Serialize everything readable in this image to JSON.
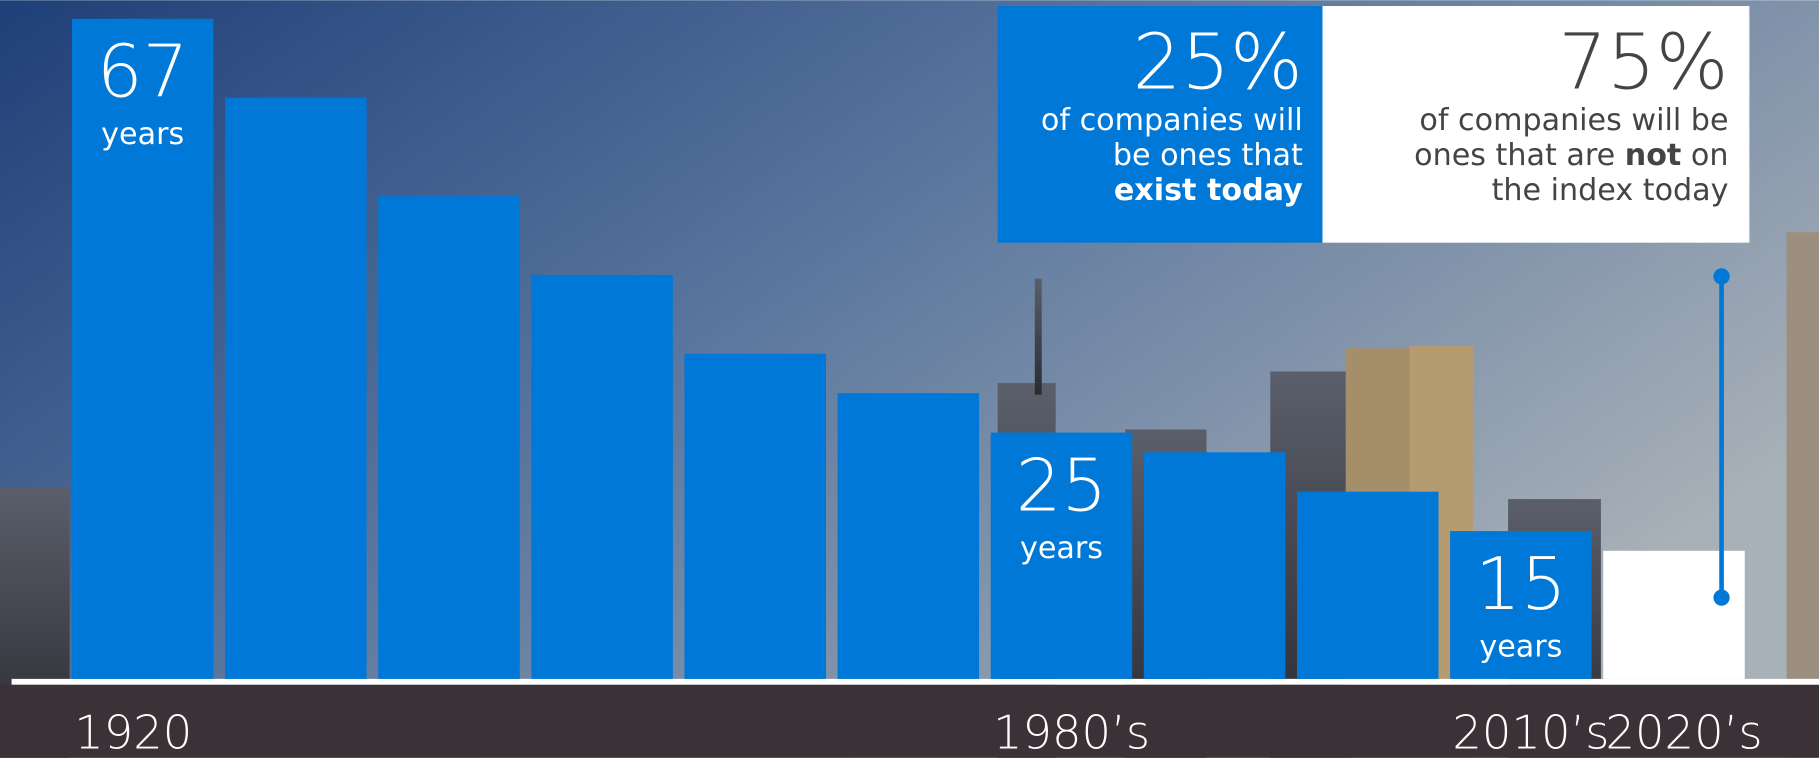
{
  "chart_data": {
    "type": "bar",
    "categories": [
      "1920",
      null,
      null,
      null,
      null,
      null,
      "1980’s",
      null,
      null,
      "2010’s",
      "2020’s"
    ],
    "values": [
      67,
      59,
      49,
      41,
      33,
      29,
      25,
      23,
      19,
      15,
      13
    ],
    "value_labels": [
      "67",
      null,
      null,
      null,
      null,
      null,
      "25",
      null,
      null,
      "15",
      null
    ],
    "value_unit": "years",
    "colors": [
      "#0078d7",
      "#0078d7",
      "#0078d7",
      "#0078d7",
      "#0078d7",
      "#0078d7",
      "#0078d7",
      "#0078d7",
      "#0078d7",
      "#0078d7",
      "#ffffff"
    ],
    "ylim": [
      0,
      67
    ]
  },
  "callout": {
    "left": {
      "headline": "25%",
      "lines": [
        "of companies will",
        "be ones that"
      ],
      "bold_line": "exist today"
    },
    "right": {
      "headline": "75%",
      "line1": "of companies will be",
      "line2_before": "ones that are ",
      "line2_bold": "not",
      "line2_after": " on",
      "line3": "the index today"
    }
  }
}
